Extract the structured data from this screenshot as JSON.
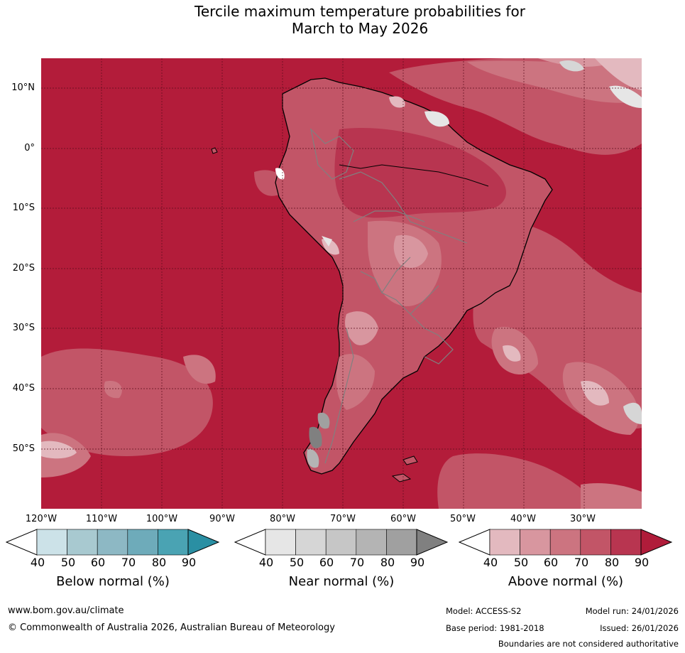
{
  "title": {
    "line1": "Tercile maximum temperature probabilities for",
    "line2": "March to May 2026"
  },
  "map": {
    "region": "South America",
    "latitude_labels": [
      "10°N",
      "0°",
      "10°S",
      "20°S",
      "30°S",
      "40°S",
      "50°S"
    ],
    "longitude_labels": [
      "120°W",
      "110°W",
      "100°W",
      "90°W",
      "80°W",
      "70°W",
      "60°W",
      "50°W",
      "40°W",
      "30°W"
    ]
  },
  "legends": [
    {
      "title": "Below normal (%)",
      "ticks": [
        "40",
        "50",
        "60",
        "70",
        "80",
        "90"
      ],
      "colors": [
        "#ffffff",
        "#cce2e8",
        "#a8c9d0",
        "#8db8c4",
        "#6eabba",
        "#4aa3b3",
        "#2a8fa3"
      ]
    },
    {
      "title": "Near normal (%)",
      "ticks": [
        "40",
        "50",
        "60",
        "70",
        "80",
        "90"
      ],
      "colors": [
        "#ffffff",
        "#e6e6e6",
        "#d6d6d6",
        "#c6c6c6",
        "#b4b4b4",
        "#a0a0a0",
        "#808080"
      ]
    },
    {
      "title": "Above normal (%)",
      "ticks": [
        "40",
        "50",
        "60",
        "70",
        "80",
        "90"
      ],
      "colors": [
        "#ffffff",
        "#e3b9bf",
        "#d8969f",
        "#cc7480",
        "#c25567",
        "#b83550",
        "#b01c3a"
      ]
    }
  ],
  "footer": {
    "website": "www.bom.gov.au/climate",
    "copyright": "© Commonwealth of Australia 2026, Australian Bureau of Meteorology",
    "model": "Model: ACCESS-S2",
    "model_run": "Model run: 24/01/2026",
    "base_period": "Base period: 1981-2018",
    "issued": "Issued: 26/01/2026",
    "disclaimer": "Boundaries are not considered authoritative"
  }
}
